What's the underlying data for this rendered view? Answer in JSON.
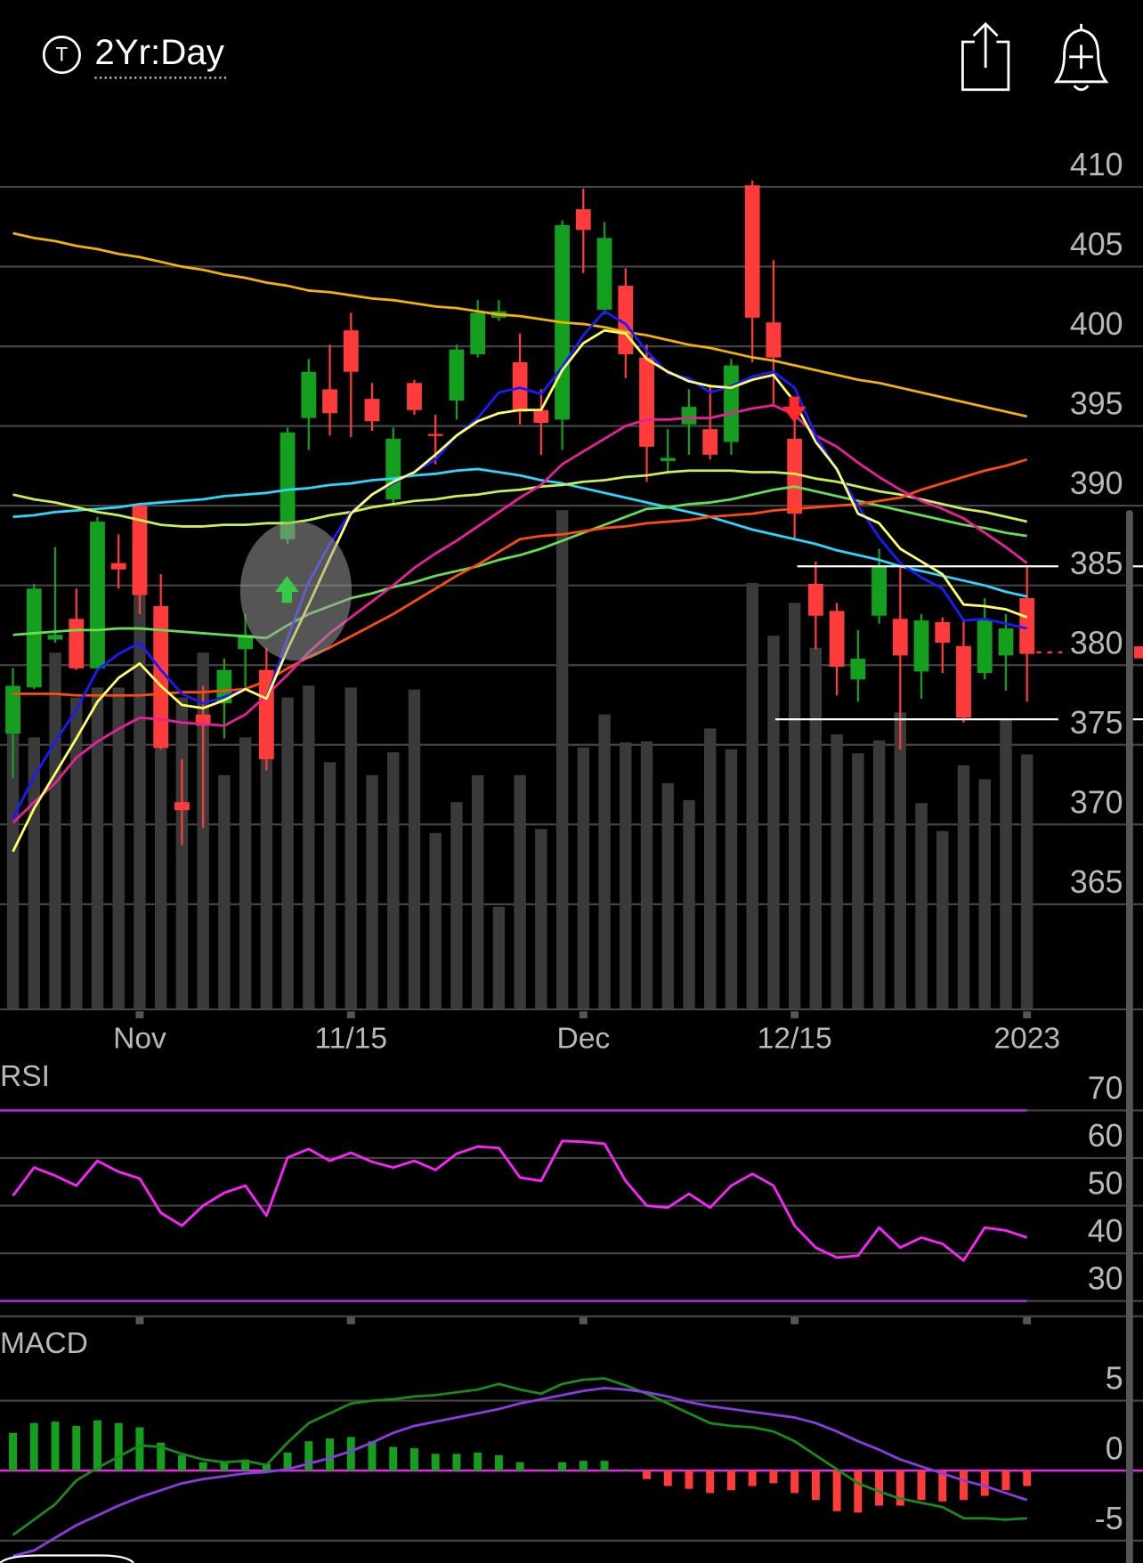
{
  "header": {
    "ticker_icon": "T",
    "title": "2Yr:Day"
  },
  "chart_data": [
    {
      "type": "candlestick",
      "categories": [
        null,
        null,
        null,
        null,
        null,
        null,
        "Nov",
        null,
        null,
        null,
        null,
        null,
        null,
        null,
        null,
        null,
        "11/15",
        null,
        null,
        null,
        null,
        null,
        null,
        null,
        null,
        null,
        null,
        "Dec",
        null,
        null,
        null,
        null,
        null,
        null,
        null,
        null,
        null,
        "12/15",
        null,
        null,
        null,
        null,
        null,
        null,
        null,
        null,
        null,
        null,
        "2023"
      ],
      "open": [
        375.7,
        378.6,
        381.6,
        382.9,
        379.8,
        386.4,
        390.0,
        383.7,
        371.4,
        376.9,
        377.6,
        381.0,
        379.7,
        387.9,
        395.5,
        397.3,
        401.0,
        396.7,
        390.4,
        397.7,
        394.5,
        396.6,
        399.5,
        401.8,
        399.0,
        396.0,
        395.4,
        408.6,
        402.3,
        403.8,
        399.3,
        392.8,
        395.1,
        394.8,
        394.0,
        410.1,
        401.5,
        394.2,
        385.1,
        383.4,
        379.1,
        383.1,
        382.9,
        379.6,
        382.7,
        381.2,
        379.5,
        380.6,
        384.2
      ],
      "high": [
        379.8,
        385.1,
        387.4,
        384.8,
        389.3,
        388.2,
        390.1,
        385.7,
        374.1,
        378.7,
        380.4,
        383.2,
        381.1,
        394.9,
        399.2,
        400.1,
        402.1,
        397.7,
        394.9,
        397.9,
        395.7,
        400.1,
        402.9,
        402.9,
        400.8,
        397.3,
        407.9,
        409.9,
        407.8,
        404.9,
        400.1,
        394.8,
        397.3,
        397.6,
        399.2,
        410.4,
        405.4,
        396.8,
        386.5,
        383.9,
        382.2,
        387.3,
        386.2,
        383.2,
        383.0,
        382.9,
        384.2,
        383.2,
        386.2
      ],
      "low": [
        372.9,
        378.5,
        381.4,
        379.7,
        379.7,
        384.8,
        383.2,
        374.7,
        368.7,
        369.8,
        375.4,
        378.6,
        373.4,
        387.6,
        393.5,
        394.4,
        394.3,
        394.7,
        390.1,
        395.7,
        392.6,
        395.4,
        399.3,
        401.6,
        395.1,
        393.2,
        393.5,
        404.6,
        402.0,
        398.0,
        391.5,
        392.0,
        393.2,
        392.9,
        393.2,
        399.0,
        396.3,
        387.9,
        381.0,
        378.1,
        377.7,
        382.6,
        374.7,
        377.9,
        379.5,
        376.4,
        379.1,
        378.4,
        377.7
      ],
      "close": [
        378.7,
        384.8,
        381.9,
        379.8,
        389.0,
        386.0,
        384.4,
        374.8,
        370.9,
        376.2,
        379.7,
        381.9,
        374.1,
        394.6,
        398.4,
        395.8,
        398.4,
        395.3,
        394.2,
        396.0,
        394.4,
        399.8,
        402.1,
        402.2,
        395.9,
        395.2,
        407.6,
        407.3,
        406.8,
        399.5,
        393.7,
        393.0,
        396.2,
        393.2,
        398.8,
        401.8,
        399.3,
        389.5,
        383.1,
        379.9,
        380.4,
        386.2,
        380.6,
        382.8,
        381.4,
        376.7,
        382.8,
        382.3,
        380.7
      ],
      "up_color": "#14a01e",
      "down_color": "#ff3b3b",
      "volume": {
        "color": "#3a3a3a",
        "ylim": [
          0,
          88.3
        ],
        "values": [
          31.3,
          27.3,
          35.8,
          31.3,
          32.3,
          32.3,
          43.8,
          31.3,
          31.3,
          35.8,
          23.5,
          27.3,
          29.3,
          31.3,
          32.5,
          24.8,
          32.3,
          23.5,
          25.8,
          32.1,
          17.7,
          20.8,
          23.5,
          10.3,
          23.5,
          18.1,
          50.1,
          26.3,
          29.6,
          26.8,
          26.9,
          22.7,
          21.0,
          28.2,
          26.1,
          42.8,
          37.5,
          40.8,
          36.3,
          27.6,
          25.7,
          27.0,
          29.8,
          20.7,
          17.9,
          24.5,
          23.1,
          29.1,
          25.6
        ]
      },
      "series": [
        {
          "color": "#f0b400",
          "values": [
            407.1,
            406.8,
            406.6,
            406.3,
            406.1,
            405.8,
            405.6,
            405.3,
            405.0,
            404.8,
            404.5,
            404.3,
            404.0,
            403.8,
            403.5,
            403.4,
            403.2,
            403.0,
            402.9,
            402.7,
            402.5,
            402.4,
            402.2,
            402.0,
            401.9,
            401.7,
            401.5,
            401.4,
            401.2,
            400.9,
            400.7,
            400.4,
            400.1,
            399.9,
            399.6,
            399.3,
            399.1,
            398.8,
            398.5,
            398.2,
            397.9,
            397.7,
            397.4,
            397.1,
            396.8,
            396.5,
            396.2,
            395.9,
            395.6
          ]
        },
        {
          "color": "#2ad8ff",
          "values": [
            389.3,
            389.4,
            389.6,
            389.7,
            389.8,
            389.9,
            390.1,
            390.2,
            390.3,
            390.4,
            390.6,
            390.7,
            390.8,
            391.0,
            391.1,
            391.3,
            391.4,
            391.6,
            391.7,
            391.9,
            392.0,
            392.2,
            392.3,
            392.1,
            391.9,
            391.6,
            391.4,
            391.1,
            390.8,
            390.5,
            390.2,
            389.9,
            389.6,
            389.3,
            388.9,
            388.5,
            388.2,
            387.9,
            387.6,
            387.2,
            386.9,
            386.6,
            386.2,
            385.9,
            385.6,
            385.3,
            385.0,
            384.6,
            384.3
          ]
        },
        {
          "color": "#c8f050",
          "values": [
            390.7,
            390.4,
            390.2,
            389.9,
            389.6,
            389.4,
            389.1,
            388.8,
            388.7,
            388.7,
            388.8,
            388.8,
            388.9,
            388.9,
            389.1,
            389.4,
            389.6,
            389.9,
            390.1,
            390.3,
            390.4,
            390.6,
            390.7,
            390.9,
            391.0,
            391.2,
            391.3,
            391.5,
            391.6,
            391.8,
            391.9,
            392.1,
            392.2,
            392.2,
            392.2,
            392.1,
            392.1,
            392.0,
            391.7,
            391.5,
            391.2,
            390.9,
            390.7,
            390.4,
            390.1,
            389.8,
            389.6,
            389.3,
            389.0
          ]
        },
        {
          "color": "#66dd55",
          "values": [
            381.9,
            382.0,
            382.1,
            382.2,
            382.2,
            382.3,
            382.3,
            382.2,
            382.1,
            382.0,
            381.9,
            381.8,
            381.7,
            382.5,
            383.2,
            383.7,
            384.2,
            384.5,
            384.9,
            385.2,
            385.6,
            385.9,
            386.2,
            386.6,
            386.9,
            387.3,
            387.8,
            388.3,
            388.8,
            389.3,
            389.8,
            389.9,
            390.1,
            390.2,
            390.4,
            390.7,
            391.0,
            391.2,
            390.9,
            390.6,
            390.3,
            390.0,
            389.7,
            389.4,
            389.1,
            388.8,
            388.6,
            388.3,
            388.1
          ]
        },
        {
          "color": "#ff4a10",
          "values": [
            378.2,
            378.2,
            378.2,
            378.1,
            378.1,
            378.1,
            378.1,
            378.2,
            378.3,
            378.3,
            378.4,
            378.5,
            379.0,
            379.8,
            380.5,
            381.1,
            381.8,
            382.5,
            383.2,
            384.0,
            384.8,
            385.6,
            386.3,
            387.1,
            387.9,
            388.1,
            388.2,
            388.4,
            388.6,
            388.7,
            388.9,
            389.0,
            389.1,
            389.3,
            389.4,
            389.5,
            389.7,
            389.8,
            389.9,
            390.0,
            390.1,
            390.3,
            390.5,
            391.0,
            391.4,
            391.8,
            392.2,
            392.5,
            392.9
          ]
        },
        {
          "color": "#e8209a",
          "values": [
            370.1,
            371.4,
            372.6,
            374.2,
            375.2,
            376.0,
            376.7,
            376.6,
            376.4,
            376.3,
            376.2,
            376.9,
            378.1,
            379.4,
            380.8,
            382.0,
            383.0,
            384.0,
            385.0,
            386.1,
            387.0,
            387.8,
            388.7,
            389.6,
            390.5,
            391.3,
            392.6,
            393.4,
            394.2,
            395.0,
            395.4,
            395.4,
            395.5,
            395.5,
            395.8,
            396.1,
            396.3,
            395.7,
            394.4,
            393.7,
            392.7,
            391.8,
            391.0,
            390.3,
            389.8,
            389.2,
            388.3,
            387.4,
            386.4
          ]
        },
        {
          "color": "#1a1aff",
          "values": [
            370.4,
            373.0,
            375.2,
            377.2,
            379.7,
            380.7,
            381.4,
            379.7,
            378.2,
            377.6,
            378.0,
            378.5,
            377.9,
            381.7,
            385.2,
            387.6,
            389.6,
            390.7,
            391.4,
            392.1,
            392.9,
            394.4,
            395.5,
            397.1,
            397.4,
            397.0,
            398.7,
            400.7,
            402.2,
            401.4,
            399.7,
            398.3,
            398.0,
            397.1,
            397.5,
            398.1,
            398.4,
            397.4,
            394.4,
            392.2,
            390.0,
            388.0,
            386.4,
            385.5,
            384.8,
            382.8,
            382.9,
            382.6,
            382.3
          ]
        },
        {
          "color": "#ffff66",
          "values": [
            368.3,
            371.0,
            373.2,
            375.4,
            377.7,
            379.2,
            380.1,
            378.7,
            377.5,
            377.3,
            377.8,
            378.5,
            377.9,
            381.0,
            383.8,
            386.7,
            389.5,
            390.7,
            391.5,
            392.1,
            393.2,
            394.4,
            395.3,
            395.8,
            396.0,
            396.0,
            398.5,
            400.2,
            401.0,
            400.8,
            399.2,
            398.4,
            397.8,
            397.5,
            397.4,
            397.9,
            398.2,
            396.5,
            394.0,
            392.3,
            389.5,
            388.9,
            387.3,
            386.5,
            385.7,
            383.8,
            383.7,
            383.5,
            383.0
          ]
        }
      ],
      "levels": [
        386.2,
        376.6
      ],
      "level_color": "#ffffff",
      "last_price": 380.8,
      "last_price_color": "#ff3b3b",
      "ylim": [
        358.4,
        413.6
      ],
      "yticks": [
        365,
        370,
        375,
        380,
        385,
        390,
        395,
        400,
        405,
        410
      ],
      "grid": true
    },
    {
      "type": "line",
      "title": "RSI",
      "ylim": [
        27,
        73
      ],
      "yticks": [
        30,
        40,
        50,
        60,
        70
      ],
      "grid": true,
      "bands": [
        70,
        30
      ],
      "band_color": "#9a2bd0",
      "series": [
        {
          "color": "#ff22ff",
          "values": [
            52.1,
            58.0,
            56.3,
            54.2,
            59.4,
            57.1,
            55.7,
            48.5,
            45.8,
            50.0,
            52.7,
            54.2,
            47.9,
            60.1,
            61.9,
            59.4,
            61.1,
            59.2,
            58.0,
            59.4,
            57.5,
            60.9,
            62.4,
            62.1,
            55.9,
            55.2,
            63.6,
            63.4,
            63.0,
            55.2,
            50.0,
            49.6,
            52.5,
            49.6,
            54.2,
            56.7,
            54.2,
            45.8,
            41.2,
            39.1,
            39.5,
            45.4,
            41.2,
            43.3,
            42.0,
            38.5,
            45.4,
            44.8,
            43.3
          ]
        }
      ]
    },
    {
      "type": "macd",
      "title": "MACD",
      "ylim": [
        -6.6,
        7.9
      ],
      "yticks": [
        -5,
        0,
        5
      ],
      "grid": true,
      "zero_line_color": "#ff22ff",
      "histogram": {
        "up_color": "#14a01e",
        "down_color": "#ff3b3b",
        "values": [
          2.7,
          3.4,
          3.5,
          3.2,
          3.6,
          3.4,
          3.1,
          2.0,
          1.1,
          0.6,
          0.6,
          0.8,
          0.5,
          1.3,
          2.1,
          2.3,
          2.4,
          2.1,
          1.7,
          1.6,
          1.2,
          1.2,
          1.3,
          1.1,
          0.6,
          0.1,
          0.6,
          0.7,
          0.7,
          0.1,
          -0.6,
          -1.1,
          -1.3,
          -1.6,
          -1.4,
          -1.1,
          -0.9,
          -1.6,
          -2.1,
          -2.9,
          -3.0,
          -2.5,
          -2.5,
          -2.1,
          -2.2,
          -2.1,
          -1.8,
          -1.4,
          -1.1
        ]
      },
      "series": [
        {
          "color": "#1a8a1a",
          "values": [
            -4.6,
            -3.5,
            -2.4,
            -0.7,
            0.2,
            1.0,
            1.8,
            1.7,
            1.2,
            0.8,
            0.6,
            0.7,
            0.4,
            2.0,
            3.4,
            4.1,
            4.8,
            5.0,
            5.1,
            5.3,
            5.4,
            5.6,
            5.8,
            6.2,
            5.8,
            5.5,
            6.2,
            6.5,
            6.6,
            6.1,
            5.5,
            4.8,
            4.1,
            3.4,
            3.2,
            3.1,
            2.8,
            2.1,
            1.1,
            0.1,
            -0.9,
            -1.5,
            -2.0,
            -2.3,
            -2.6,
            -3.4,
            -3.4,
            -3.5,
            -3.4
          ]
        },
        {
          "color": "#8a3be2",
          "values": [
            -6.1,
            -5.7,
            -4.8,
            -3.9,
            -3.2,
            -2.5,
            -1.9,
            -1.4,
            -0.9,
            -0.6,
            -0.4,
            -0.2,
            -0.1,
            0.1,
            0.5,
            0.9,
            1.4,
            2.0,
            2.7,
            3.2,
            3.5,
            3.8,
            4.1,
            4.4,
            4.8,
            5.1,
            5.4,
            5.7,
            5.9,
            5.8,
            5.6,
            5.3,
            4.9,
            4.6,
            4.4,
            4.2,
            4.0,
            3.8,
            3.4,
            2.8,
            2.1,
            1.5,
            0.8,
            0.3,
            -0.2,
            -0.7,
            -1.1,
            -1.6,
            -2.1
          ]
        }
      ]
    }
  ]
}
